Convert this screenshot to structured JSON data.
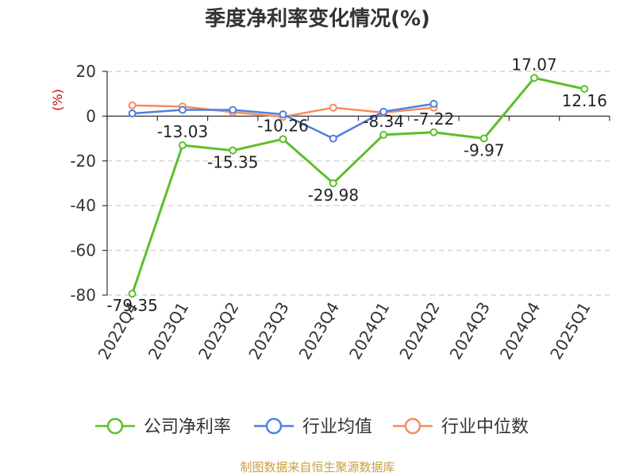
{
  "chart_data": {
    "type": "line",
    "title": "季度净利率变化情况(%)",
    "ylabel": "(%)",
    "xlabel": "",
    "categories": [
      "2022Q4",
      "2023Q1",
      "2023Q2",
      "2023Q3",
      "2023Q4",
      "2024Q1",
      "2024Q2",
      "2024Q3",
      "2024Q4",
      "2025Q1"
    ],
    "ylim": [
      -80,
      20
    ],
    "yticks": [
      20,
      0,
      -20,
      -40,
      -60,
      -80
    ],
    "grid": true,
    "legend_position": "bottom",
    "series": [
      {
        "name": "公司净利率",
        "color": "#5cbf2a",
        "values": [
          -79.35,
          -13.03,
          -15.35,
          -10.26,
          -29.98,
          -8.34,
          -7.22,
          -9.97,
          17.07,
          12.16
        ],
        "labels": [
          "-79.35",
          "-13.03",
          "-15.35",
          "-10.26",
          "-29.98",
          "-8.34",
          "-7.22",
          "-9.97",
          "17.07",
          "12.16"
        ]
      },
      {
        "name": "行业均值",
        "color": "#4f7fe0",
        "values": [
          1.2,
          2.8,
          2.8,
          0.8,
          -10.0,
          2.0,
          5.5,
          null,
          null,
          null
        ]
      },
      {
        "name": "行业中位数",
        "color": "#f58c5a",
        "values": [
          4.8,
          4.3,
          1.8,
          -0.3,
          3.8,
          1.6,
          3.8,
          null,
          null,
          null
        ]
      }
    ]
  },
  "footer": {
    "source": "制图数据来自恒生聚源数据库"
  }
}
